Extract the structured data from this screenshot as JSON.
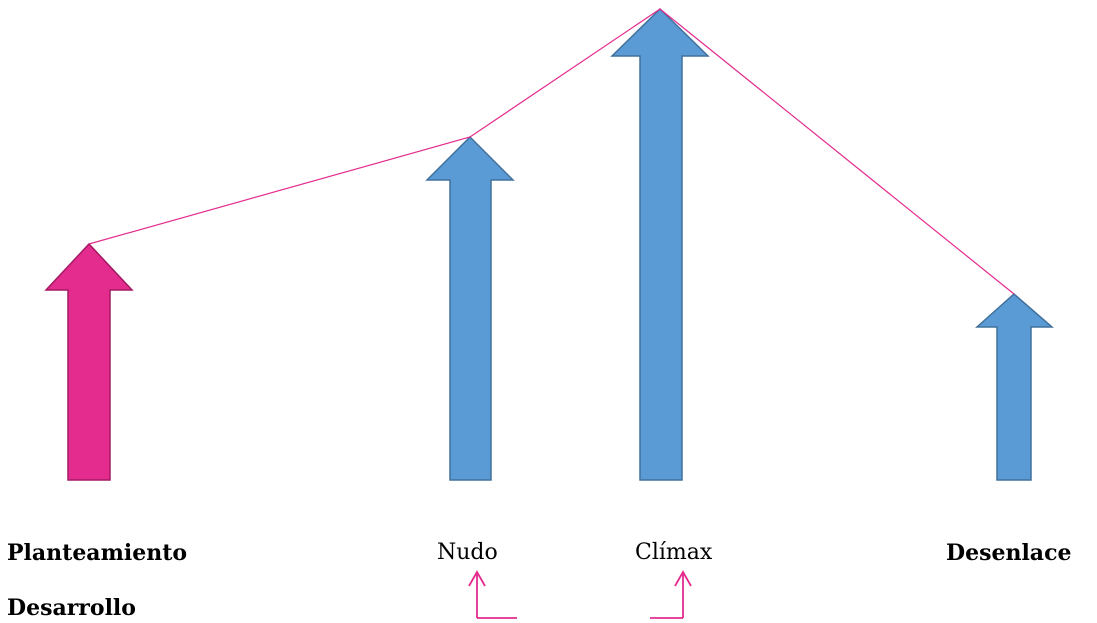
{
  "labels": {
    "planteamiento": "Planteamiento",
    "desarrollo": "Desarrollo",
    "nudo": "Nudo",
    "climax": "Clímax",
    "desenlace": "Desenlace"
  },
  "colors": {
    "pink_fill": "#E32C8E",
    "pink_stroke": "#A31A63",
    "blue_fill": "#5B9BD5",
    "blue_stroke": "#41719C",
    "line": "#E32C8E"
  }
}
